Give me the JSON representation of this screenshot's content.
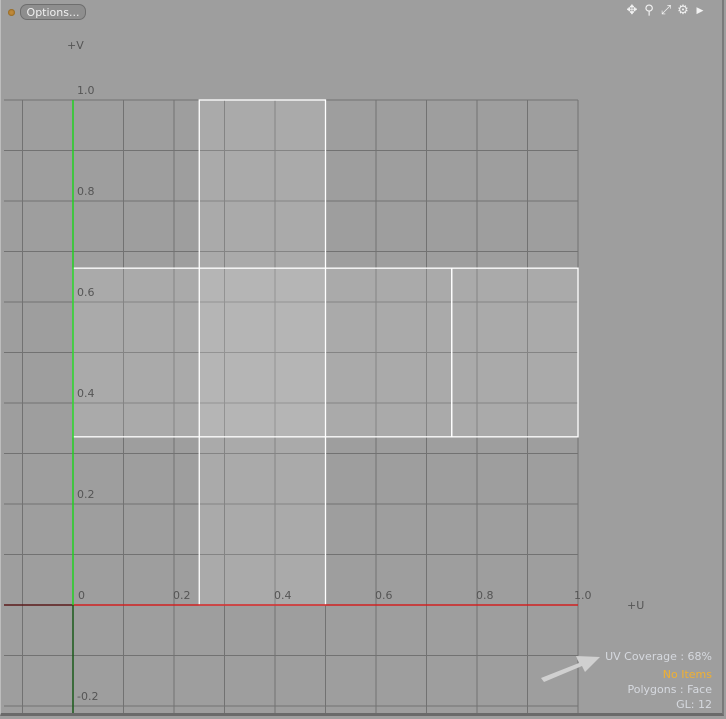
{
  "toolbar": {
    "options_label": "Options...",
    "status_dot_color": "#c08a3a",
    "icons": [
      "move-icon",
      "zoom-icon",
      "fit-icon",
      "gear-icon",
      "play-arrow-icon"
    ]
  },
  "axes": {
    "u_label": "+U",
    "v_label": "+V",
    "u_color": "#d02020",
    "v_color": "#20d020",
    "u_ticks": [
      "0",
      "0.2",
      "0.4",
      "0.6",
      "0.8",
      "1.0"
    ],
    "v_ticks": [
      "1.0",
      "0.8",
      "0.6",
      "0.4",
      "0.2",
      "-0.2"
    ]
  },
  "uv_islands": [
    {
      "u": [
        0.25,
        0.5
      ],
      "v": [
        0,
        1
      ]
    },
    {
      "u": [
        0,
        0.75
      ],
      "v": [
        0.333,
        0.667
      ]
    },
    {
      "u": [
        0.75,
        1
      ],
      "v": [
        0.333,
        0.667
      ]
    }
  ],
  "info": {
    "coverage": "UV Coverage : 68%",
    "items": "No Items",
    "polygons": "Polygons : Face",
    "gl": "GL: 12",
    "items_color": "#f0b030"
  }
}
